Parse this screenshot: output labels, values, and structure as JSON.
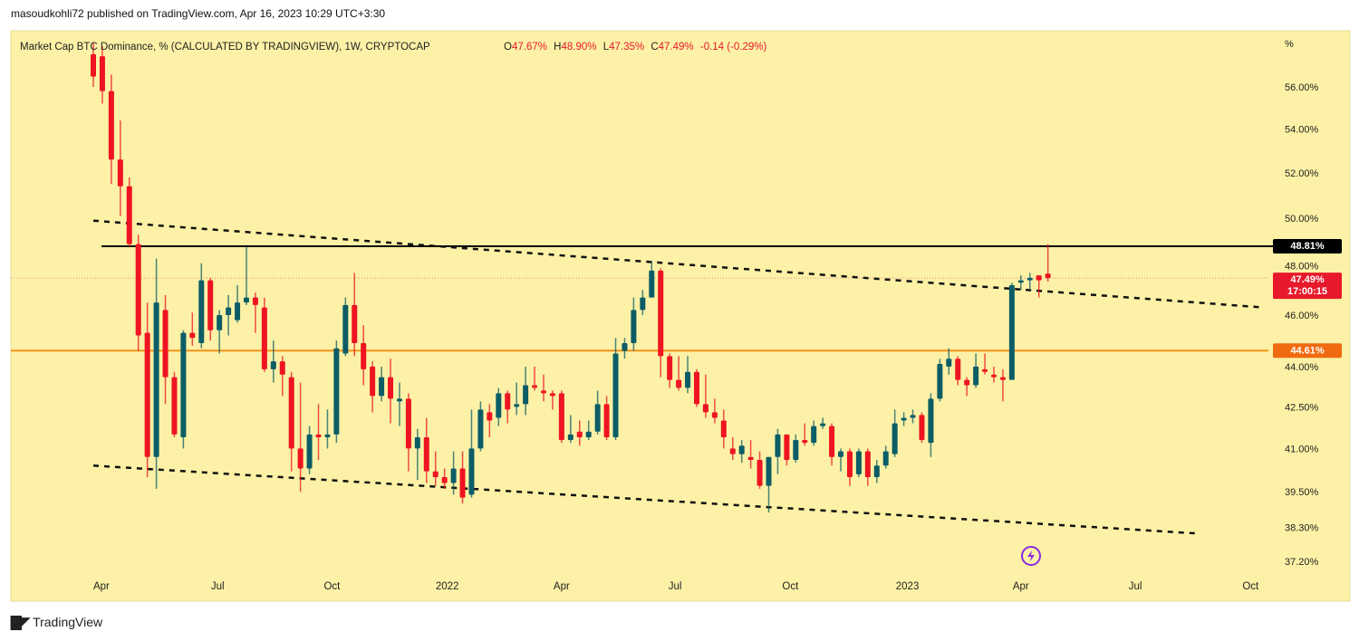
{
  "publish_line": "masoudkohli72 published on TradingView.com, Apr 16, 2023 10:29 UTC+3:30",
  "footer": {
    "logo_text": "TradingView"
  },
  "legend": {
    "symbol": "Market Cap BTC Dominance, % (CALCULATED BY TRADINGVIEW), 1W, CRYPTOCAP",
    "o_label": "O",
    "o": "47.67%",
    "h_label": "H",
    "h": "48.90%",
    "l_label": "L",
    "l": "47.35%",
    "c_label": "C",
    "c": "47.49%",
    "change": "-0.14 (-0.29%)"
  },
  "colors": {
    "background": "#fcf1a6",
    "up": "#0c5d66",
    "down": "#ee1421",
    "resistance": "#000000",
    "support": "#f7931a",
    "last_price": "#e8192c"
  },
  "chart_data": {
    "type": "candlestick",
    "title": "Market Cap BTC Dominance, %",
    "interval": "1W",
    "y_scale": "log",
    "ylim": [
      37.0,
      58.5
    ],
    "y_unit_label": "%",
    "y_ticks": [
      "56.00%",
      "54.00%",
      "52.00%",
      "50.00%",
      "48.00%",
      "46.00%",
      "44.00%",
      "42.50%",
      "41.00%",
      "39.50%",
      "38.30%",
      "37.20%"
    ],
    "y_tick_values": [
      56,
      54,
      52,
      50,
      48,
      46,
      44,
      42.5,
      41,
      39.5,
      38.3,
      37.2
    ],
    "x_ticks": [
      {
        "label": "Apr",
        "week": 0.9
      },
      {
        "label": "Jul",
        "week": 13.8
      },
      {
        "label": "Oct",
        "week": 26.5
      },
      {
        "label": "2022",
        "week": 39.3
      },
      {
        "label": "Apr",
        "week": 52
      },
      {
        "label": "Jul",
        "week": 64.6
      },
      {
        "label": "Oct",
        "week": 77.4
      },
      {
        "label": "2023",
        "week": 90.4
      },
      {
        "label": "Apr",
        "week": 103
      },
      {
        "label": "Jul",
        "week": 115.7
      },
      {
        "label": "Oct",
        "week": 128.5
      }
    ],
    "xlim_weeks": [
      -9.2,
      130.5
    ],
    "ohlc": [
      [
        57.6,
        58.2,
        56.0,
        56.5
      ],
      [
        57.5,
        58.0,
        55.2,
        55.8
      ],
      [
        55.8,
        56.6,
        51.5,
        52.6
      ],
      [
        52.6,
        54.4,
        50.1,
        51.4
      ],
      [
        51.4,
        51.8,
        48.8,
        48.9
      ],
      [
        48.9,
        49.3,
        44.6,
        45.2
      ],
      [
        45.3,
        46.5,
        40.0,
        40.7
      ],
      [
        40.7,
        48.3,
        39.6,
        46.5
      ],
      [
        46.2,
        46.8,
        42.6,
        43.6
      ],
      [
        43.6,
        43.8,
        41.4,
        41.5
      ],
      [
        41.4,
        45.4,
        41.0,
        45.3
      ],
      [
        45.3,
        46.1,
        44.8,
        45.1
      ],
      [
        44.9,
        48.1,
        44.7,
        47.4
      ],
      [
        47.4,
        47.5,
        45.0,
        45.4
      ],
      [
        45.4,
        46.2,
        44.5,
        46.0
      ],
      [
        46.0,
        46.8,
        45.2,
        46.3
      ],
      [
        45.8,
        47.2,
        45.7,
        46.5
      ],
      [
        46.5,
        48.8,
        46.4,
        46.7
      ],
      [
        46.7,
        46.9,
        45.3,
        46.4
      ],
      [
        46.3,
        46.7,
        43.8,
        43.9
      ],
      [
        43.9,
        45.0,
        43.4,
        44.2
      ],
      [
        44.2,
        44.4,
        42.9,
        43.7
      ],
      [
        43.6,
        43.8,
        40.2,
        41.0
      ],
      [
        41.0,
        43.4,
        39.5,
        40.3
      ],
      [
        40.3,
        41.8,
        40.1,
        41.5
      ],
      [
        41.5,
        42.6,
        40.6,
        41.4
      ],
      [
        41.4,
        42.4,
        41.0,
        41.5
      ],
      [
        41.5,
        45.0,
        41.2,
        44.7
      ],
      [
        44.5,
        46.7,
        44.4,
        46.4
      ],
      [
        46.4,
        47.7,
        44.4,
        44.9
      ],
      [
        44.9,
        45.6,
        43.3,
        43.9
      ],
      [
        44.0,
        44.2,
        42.3,
        42.9
      ],
      [
        42.9,
        44.0,
        42.7,
        43.6
      ],
      [
        43.6,
        44.3,
        41.9,
        42.8
      ],
      [
        42.7,
        43.4,
        41.8,
        42.8
      ],
      [
        42.8,
        43.0,
        40.2,
        41.0
      ],
      [
        41.0,
        41.7,
        39.9,
        41.4
      ],
      [
        41.4,
        42.1,
        39.8,
        40.2
      ],
      [
        40.2,
        40.9,
        39.7,
        40.0
      ],
      [
        40.0,
        40.3,
        39.6,
        39.8
      ],
      [
        39.8,
        40.9,
        39.4,
        40.3
      ],
      [
        40.3,
        40.9,
        39.1,
        39.3
      ],
      [
        39.4,
        42.4,
        39.3,
        41.0
      ],
      [
        41.0,
        42.7,
        40.9,
        42.4
      ],
      [
        42.3,
        42.6,
        41.4,
        42.0
      ],
      [
        42.1,
        43.2,
        41.8,
        43.0
      ],
      [
        43.0,
        43.1,
        41.9,
        42.4
      ],
      [
        42.5,
        43.4,
        42.2,
        42.6
      ],
      [
        42.6,
        44.0,
        42.2,
        43.3
      ],
      [
        43.3,
        44.0,
        43.1,
        43.2
      ],
      [
        43.1,
        43.7,
        42.7,
        43.0
      ],
      [
        43.0,
        43.1,
        42.4,
        42.9
      ],
      [
        43.0,
        43.1,
        41.2,
        41.3
      ],
      [
        41.3,
        42.2,
        41.2,
        41.5
      ],
      [
        41.6,
        42.0,
        41.1,
        41.4
      ],
      [
        41.4,
        42.0,
        41.3,
        41.6
      ],
      [
        41.6,
        43.1,
        41.5,
        42.6
      ],
      [
        42.6,
        42.9,
        41.3,
        41.4
      ],
      [
        41.4,
        45.1,
        41.3,
        44.5
      ],
      [
        44.6,
        45.1,
        44.3,
        44.9
      ],
      [
        44.9,
        46.7,
        44.6,
        46.2
      ],
      [
        46.2,
        47.0,
        46.0,
        46.7
      ],
      [
        46.7,
        48.2,
        46.7,
        47.8
      ],
      [
        47.8,
        47.9,
        43.6,
        44.4
      ],
      [
        44.4,
        44.5,
        43.2,
        43.5
      ],
      [
        43.5,
        44.4,
        43.1,
        43.2
      ],
      [
        43.2,
        44.4,
        43.0,
        43.8
      ],
      [
        43.8,
        43.9,
        42.5,
        42.6
      ],
      [
        42.6,
        43.7,
        42.1,
        42.3
      ],
      [
        42.3,
        42.8,
        41.9,
        42.1
      ],
      [
        42.0,
        42.4,
        41.0,
        41.4
      ],
      [
        41.0,
        41.4,
        40.6,
        40.8
      ],
      [
        40.8,
        41.3,
        40.5,
        41.1
      ],
      [
        40.7,
        41.3,
        40.3,
        40.6
      ],
      [
        40.6,
        40.9,
        39.6,
        39.7
      ],
      [
        39.7,
        40.7,
        38.8,
        40.7
      ],
      [
        40.7,
        41.7,
        40.1,
        41.5
      ],
      [
        41.5,
        41.5,
        40.4,
        40.6
      ],
      [
        40.6,
        41.5,
        40.5,
        41.3
      ],
      [
        41.3,
        41.9,
        41.1,
        41.2
      ],
      [
        41.2,
        42.0,
        41.1,
        41.8
      ],
      [
        41.8,
        42.1,
        41.7,
        41.9
      ],
      [
        41.8,
        41.9,
        40.4,
        40.7
      ],
      [
        40.7,
        41.0,
        40.2,
        40.9
      ],
      [
        40.9,
        41.0,
        39.7,
        40.0
      ],
      [
        40.1,
        41.0,
        40.0,
        40.9
      ],
      [
        40.9,
        41.0,
        39.7,
        40.0
      ],
      [
        40.0,
        40.6,
        39.8,
        40.4
      ],
      [
        40.4,
        41.1,
        40.3,
        40.9
      ],
      [
        40.8,
        42.4,
        40.7,
        41.9
      ],
      [
        42.0,
        42.3,
        41.8,
        42.1
      ],
      [
        42.1,
        42.4,
        41.9,
        42.2
      ],
      [
        42.2,
        42.3,
        41.2,
        41.3
      ],
      [
        41.2,
        43.0,
        40.7,
        42.8
      ],
      [
        42.8,
        44.3,
        42.7,
        44.1
      ],
      [
        44.0,
        44.7,
        43.7,
        44.3
      ],
      [
        44.3,
        44.4,
        43.3,
        43.5
      ],
      [
        43.5,
        43.6,
        42.9,
        43.3
      ],
      [
        43.3,
        44.5,
        43.2,
        44.0
      ],
      [
        43.9,
        44.5,
        43.7,
        43.8
      ],
      [
        43.7,
        44.0,
        43.4,
        43.6
      ],
      [
        43.6,
        43.9,
        42.7,
        43.5
      ],
      [
        43.5,
        47.3,
        43.5,
        47.2
      ],
      [
        47.3,
        47.6,
        47.0,
        47.4
      ],
      [
        47.4,
        47.7,
        47.0,
        47.5
      ],
      [
        47.6,
        47.6,
        46.7,
        47.4
      ],
      [
        47.67,
        48.9,
        47.35,
        47.49
      ]
    ],
    "levels": [
      {
        "name": "resistance",
        "value": 48.81,
        "label": "48.81%"
      },
      {
        "name": "support",
        "value": 44.61,
        "label": "44.61%"
      },
      {
        "name": "last_price",
        "value": 47.49,
        "label": "47.49%",
        "countdown": "17:00:15"
      }
    ],
    "trendlines": [
      {
        "name": "upper-channel",
        "from": [
          0,
          49.9
        ],
        "to": [
          130,
          46.3
        ]
      },
      {
        "name": "lower-channel",
        "from": [
          0,
          40.4
        ],
        "to": [
          122.8,
          38.1
        ]
      }
    ]
  }
}
